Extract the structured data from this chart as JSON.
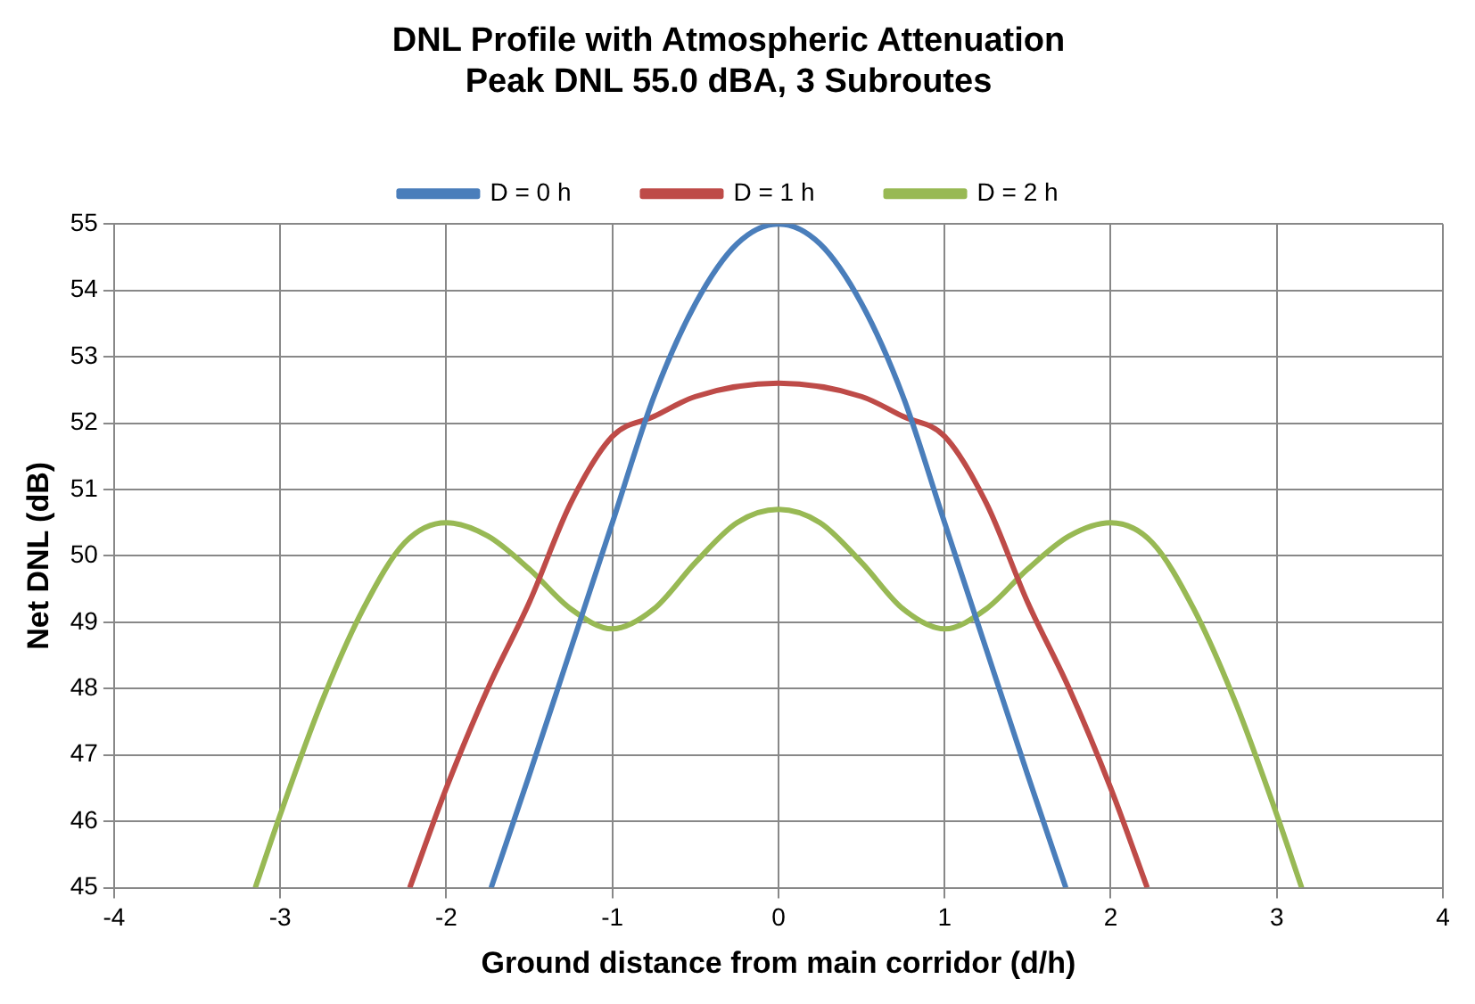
{
  "chart_data": {
    "type": "line",
    "title": "DNL Profile with Atmospheric Attenuation\nPeak DNL 55.0 dBA, 3 Subroutes",
    "xlabel": "Ground distance from main corridor (d/h)",
    "ylabel": "Net DNL (dB)",
    "xlim": [
      -4,
      4
    ],
    "xticks": [
      -4,
      -3,
      -2,
      -1,
      0,
      1,
      2,
      3,
      4
    ],
    "ylim": [
      45,
      55
    ],
    "yticks": [
      45,
      46,
      47,
      48,
      49,
      50,
      51,
      52,
      53,
      54,
      55
    ],
    "grid": true,
    "legend": "top",
    "marker": "none",
    "line_style": "solid",
    "series": [
      {
        "name": "D = 0 h",
        "color": "#4a7ebb",
        "x": [
          -1.73,
          -1.5,
          -1.25,
          -1,
          -0.75,
          -0.5,
          -0.25,
          0,
          0.25,
          0.5,
          0.75,
          1,
          1.25,
          1.5,
          1.73
        ],
        "values": [
          45,
          46.7,
          48.6,
          50.5,
          52.4,
          53.8,
          54.7,
          55,
          54.7,
          53.8,
          52.4,
          50.5,
          48.6,
          46.7,
          45
        ]
      },
      {
        "name": "D = 1 h",
        "color": "#be4b48",
        "x": [
          -2.22,
          -2,
          -1.75,
          -1.5,
          -1.25,
          -1,
          -0.75,
          -0.5,
          0,
          0.5,
          0.75,
          1,
          1.25,
          1.5,
          1.75,
          2,
          2.22
        ],
        "values": [
          45,
          46.5,
          48,
          49.3,
          50.8,
          51.8,
          52.1,
          52.4,
          52.6,
          52.4,
          52.1,
          51.8,
          50.8,
          49.3,
          48,
          46.5,
          45
        ]
      },
      {
        "name": "D = 2 h",
        "color": "#98b954",
        "x": [
          -3.15,
          -3,
          -2.75,
          -2.5,
          -2.25,
          -2,
          -1.75,
          -1.5,
          -1.25,
          -1,
          -0.75,
          -0.5,
          -0.25,
          0,
          0.25,
          0.5,
          0.75,
          1,
          1.25,
          1.5,
          1.75,
          2,
          2.25,
          2.5,
          2.75,
          3,
          3.15
        ],
        "values": [
          45,
          46.1,
          47.8,
          49.2,
          50.2,
          50.5,
          50.3,
          49.8,
          49.2,
          48.9,
          49.2,
          49.9,
          50.5,
          50.7,
          50.5,
          49.9,
          49.2,
          48.9,
          49.2,
          49.8,
          50.3,
          50.5,
          50.2,
          49.2,
          47.8,
          46.1,
          45
        ]
      }
    ]
  }
}
